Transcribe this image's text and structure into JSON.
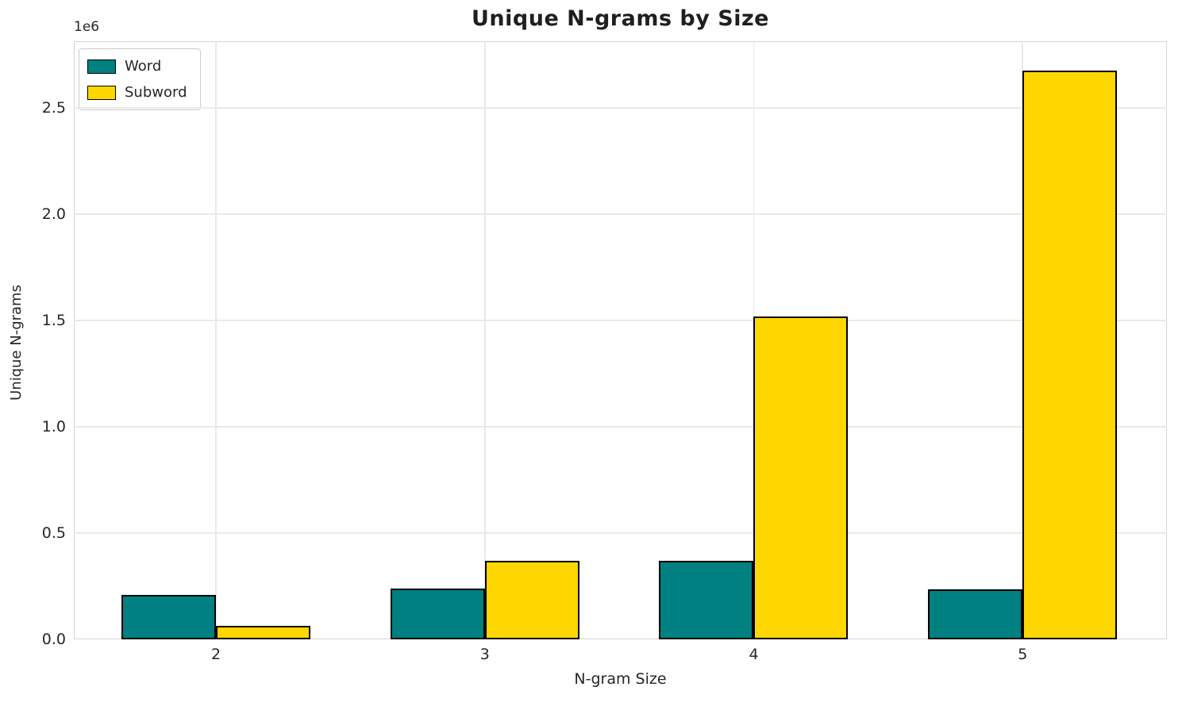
{
  "chart_data": {
    "type": "bar",
    "title": "Unique N-grams by Size",
    "xlabel": "N-gram Size",
    "ylabel": "Unique N-grams",
    "y_offset_label": "1e6",
    "categories": [
      "2",
      "3",
      "4",
      "5"
    ],
    "series": [
      {
        "name": "Word",
        "color": "#008080",
        "values": [
          210000,
          240000,
          370000,
          235000
        ]
      },
      {
        "name": "Subword",
        "color": "#FFD700",
        "values": [
          62000,
          370000,
          1520000,
          2675000
        ]
      }
    ],
    "bar_edge_color": "#000000",
    "ylim": [
      0,
      2813000
    ],
    "yticks": [
      {
        "value": 0,
        "label": "0.0"
      },
      {
        "value": 500000,
        "label": "0.5"
      },
      {
        "value": 1000000,
        "label": "1.0"
      },
      {
        "value": 1500000,
        "label": "1.5"
      },
      {
        "value": 2000000,
        "label": "2.0"
      },
      {
        "value": 2500000,
        "label": "2.5"
      }
    ],
    "legend": {
      "position": "upper left",
      "entries": [
        "Word",
        "Subword"
      ]
    },
    "grid": true,
    "colors": {
      "background": "#ffffff",
      "grid": "#e9e9e9",
      "spine": "#d4d4d4",
      "text": "#262626"
    }
  }
}
